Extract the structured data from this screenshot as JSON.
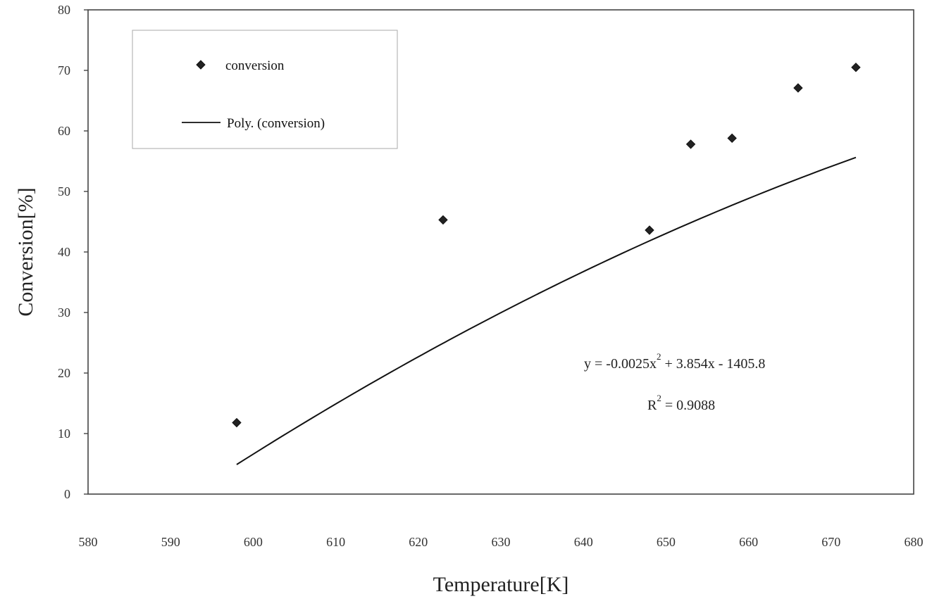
{
  "chart_data": {
    "type": "scatter",
    "title": "",
    "xlabel": "Temperature[K]",
    "ylabel": "Conversion[%]",
    "xlim": [
      580,
      680
    ],
    "ylim": [
      0,
      80
    ],
    "x_ticks": [
      "580",
      "590",
      "600",
      "610",
      "620",
      "630",
      "640",
      "650",
      "660",
      "670",
      "680"
    ],
    "y_ticks": [
      "0",
      "10",
      "20",
      "30",
      "40",
      "50",
      "60",
      "70",
      "80"
    ],
    "grid": false,
    "legend_placement": "top-left",
    "series": [
      {
        "name": "conversion",
        "kind": "scatter",
        "marker": "diamond",
        "color": "#222222",
        "x": [
          598,
          623,
          648,
          653,
          658,
          666,
          673
        ],
        "y": [
          11.8,
          45.3,
          43.6,
          57.8,
          58.8,
          67.1,
          70.5
        ]
      },
      {
        "name": "Poly. (conversion)",
        "kind": "trendline",
        "color": "#111111",
        "coefficients": [
          -0.0025,
          3.854,
          -1405.8
        ],
        "x_range": [
          598,
          673
        ]
      }
    ],
    "annotations": {
      "equation_prefix": "y = -0.0025x",
      "equation_exp": "2",
      "equation_suffix": " + 3.854x - 1405.8",
      "r2_prefix": "R",
      "r2_exp": "2",
      "r2_suffix": " = 0.9088"
    }
  }
}
